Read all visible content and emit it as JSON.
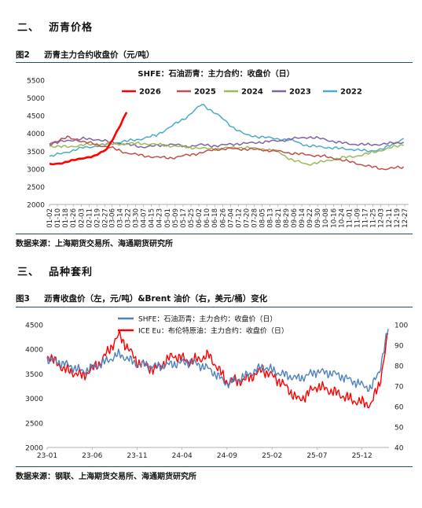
{
  "section2": {
    "num": "二、",
    "title": "沥青价格"
  },
  "fig2": {
    "label": "图2",
    "caption": "沥青主力合约收盘价（元/吨）"
  },
  "source1": "数据来源：上海期货交易所、海通期货研究所",
  "section3": {
    "num": "三、",
    "title": "品种套利"
  },
  "fig3": {
    "label": "图3",
    "caption": "沥青收盘价（左，元/吨）&Brent 油价（右，美元/桶）变化"
  },
  "source2": "数据来源：钢联、上海期货交易所、海通期货研究所",
  "chart_data": [
    {
      "type": "line",
      "title": "SHFE：石油沥青：主力合约：收盘价（日）",
      "ylim": [
        2000,
        5500
      ],
      "yticks": [
        2000,
        2500,
        3000,
        3500,
        4000,
        4500,
        5000,
        5500
      ],
      "xticks": [
        "01-02",
        "01-10",
        "01-18",
        "01-26",
        "02-03",
        "02-11",
        "02-19",
        "02-27",
        "03-06",
        "03-14",
        "03-22",
        "03-30",
        "04-07",
        "04-15",
        "04-23",
        "05-01",
        "05-09",
        "05-17",
        "05-25",
        "06-02",
        "06-10",
        "06-18",
        "06-26",
        "07-04",
        "07-12",
        "07-20",
        "07-28",
        "08-05",
        "08-13",
        "08-21",
        "08-29",
        "09-06",
        "09-14",
        "09-22",
        "09-30",
        "10-08",
        "10-16",
        "10-24",
        "11-01",
        "11-09",
        "11-17",
        "11-25",
        "12-03",
        "12-11",
        "12-19",
        "12-27"
      ],
      "legend_position": "top",
      "series": [
        {
          "name": "2026",
          "color": "#ff0000",
          "x": [
            "01-02",
            "01-16",
            "02-01",
            "02-16",
            "03-01",
            "03-08",
            "03-15",
            "03-22"
          ],
          "values": [
            3130,
            3170,
            3290,
            3350,
            3570,
            3880,
            4250,
            4680
          ]
        },
        {
          "name": "2025",
          "color": "#c0504d",
          "x": [
            "01-02",
            "01-20",
            "02-05",
            "02-20",
            "03-05",
            "03-20",
            "04-05",
            "04-20",
            "05-05",
            "05-20",
            "06-05",
            "06-20",
            "07-05",
            "07-20",
            "08-05",
            "08-20",
            "09-05",
            "09-20",
            "10-05",
            "10-20",
            "11-05",
            "11-20",
            "12-05",
            "12-27"
          ],
          "values": [
            3720,
            3890,
            3770,
            3680,
            3600,
            3460,
            3380,
            3330,
            3310,
            3380,
            3460,
            3560,
            3570,
            3560,
            3540,
            3500,
            3440,
            3400,
            3360,
            3280,
            3180,
            3080,
            3000,
            3050
          ]
        },
        {
          "name": "2024",
          "color": "#9bbb59",
          "x": [
            "01-02",
            "01-20",
            "02-05",
            "02-20",
            "03-05",
            "03-20",
            "04-05",
            "04-20",
            "05-05",
            "05-20",
            "06-05",
            "06-20",
            "07-05",
            "07-20",
            "08-05",
            "08-20",
            "09-05",
            "09-20",
            "10-05",
            "10-20",
            "11-05",
            "11-20",
            "12-05",
            "12-27"
          ],
          "values": [
            3650,
            3620,
            3680,
            3690,
            3700,
            3710,
            3720,
            3690,
            3650,
            3620,
            3580,
            3560,
            3600,
            3600,
            3560,
            3500,
            3240,
            3130,
            3200,
            3300,
            3350,
            3430,
            3540,
            3700
          ]
        },
        {
          "name": "2023",
          "color": "#8064a2",
          "x": [
            "01-02",
            "01-20",
            "02-05",
            "02-20",
            "03-05",
            "03-20",
            "04-05",
            "04-20",
            "05-05",
            "05-20",
            "06-05",
            "06-20",
            "07-05",
            "07-20",
            "08-05",
            "08-20",
            "09-05",
            "09-20",
            "10-05",
            "10-20",
            "11-05",
            "11-20",
            "12-05",
            "12-27"
          ],
          "values": [
            3700,
            3800,
            3850,
            3830,
            3750,
            3700,
            3620,
            3650,
            3700,
            3630,
            3680,
            3650,
            3700,
            3720,
            3760,
            3790,
            3850,
            3900,
            3850,
            3750,
            3700,
            3680,
            3700,
            3760
          ]
        },
        {
          "name": "2022",
          "color": "#4bacc6",
          "x": [
            "01-02",
            "01-20",
            "02-05",
            "02-20",
            "03-05",
            "03-20",
            "04-05",
            "04-20",
            "05-05",
            "05-20",
            "06-05",
            "06-20",
            "07-05",
            "07-20",
            "08-05",
            "08-20",
            "09-05",
            "09-20",
            "10-05",
            "10-20",
            "11-05",
            "11-20",
            "12-05",
            "12-27"
          ],
          "values": [
            3350,
            3480,
            3600,
            3650,
            3720,
            3780,
            3850,
            3950,
            4200,
            4450,
            4820,
            4550,
            4200,
            3950,
            3900,
            3850,
            3800,
            3650,
            3620,
            3580,
            3550,
            3500,
            3560,
            3870
          ]
        }
      ]
    },
    {
      "type": "line",
      "title": "",
      "ylim_left": [
        2000,
        4500
      ],
      "yticks_left": [
        2000,
        2500,
        3000,
        3500,
        4000,
        4500
      ],
      "ylim_right": [
        40,
        100
      ],
      "yticks_right": [
        40,
        50,
        60,
        70,
        80,
        90,
        100
      ],
      "xticks": [
        "23-01",
        "23-06",
        "23-11",
        "24-04",
        "24-09",
        "25-02",
        "25-07",
        "25-12"
      ],
      "legend_position": "top",
      "series": [
        {
          "name": "SHFE：石油沥青：主力合约：收盘价（日）",
          "axis": "left",
          "color": "#4f81bd",
          "x": [
            "23-01",
            "23-03",
            "23-05",
            "23-07",
            "23-09",
            "23-11",
            "24-01",
            "24-03",
            "24-05",
            "24-07",
            "24-09",
            "24-11",
            "25-01",
            "25-03",
            "25-05",
            "25-07",
            "25-09",
            "25-11",
            "26-01",
            "26-02",
            "26-03"
          ],
          "values": [
            3800,
            3700,
            3550,
            3700,
            3900,
            3700,
            3650,
            3700,
            3750,
            3600,
            3300,
            3450,
            3650,
            3500,
            3400,
            3550,
            3500,
            3350,
            3200,
            3600,
            4500
          ]
        },
        {
          "name": "ICE Eu：布伦特原油：主力合约：收盘价（日）",
          "axis": "right",
          "color": "#ff0000",
          "x": [
            "23-01",
            "23-03",
            "23-05",
            "23-07",
            "23-09",
            "23-11",
            "24-01",
            "24-03",
            "24-05",
            "24-07",
            "24-09",
            "24-11",
            "25-01",
            "25-03",
            "25-05",
            "25-07",
            "25-09",
            "25-11",
            "26-01",
            "26-02",
            "26-03"
          ],
          "values": [
            85,
            78,
            75,
            82,
            95,
            82,
            78,
            85,
            82,
            85,
            72,
            73,
            78,
            72,
            63,
            70,
            67,
            63,
            61,
            72,
            98
          ]
        }
      ]
    }
  ]
}
